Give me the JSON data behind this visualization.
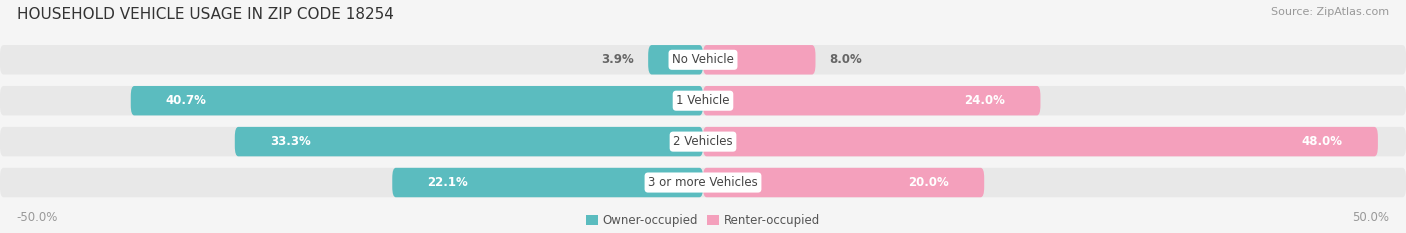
{
  "title": "HOUSEHOLD VEHICLE USAGE IN ZIP CODE 18254",
  "source": "Source: ZipAtlas.com",
  "categories": [
    "No Vehicle",
    "1 Vehicle",
    "2 Vehicles",
    "3 or more Vehicles"
  ],
  "owner_values": [
    3.9,
    40.7,
    33.3,
    22.1
  ],
  "renter_values": [
    8.0,
    24.0,
    48.0,
    20.0
  ],
  "owner_color": "#5bbcbf",
  "renter_color": "#f4a0bc",
  "owner_label": "Owner-occupied",
  "renter_label": "Renter-occupied",
  "xlim": [
    -50,
    50
  ],
  "background_color": "#f5f5f5",
  "bar_background": "#e8e8e8",
  "bar_height": 0.72,
  "title_fontsize": 11,
  "label_fontsize": 8.5,
  "pct_fontsize": 8.5,
  "tick_fontsize": 8.5,
  "source_fontsize": 8.0,
  "cat_label_fontsize": 8.5
}
